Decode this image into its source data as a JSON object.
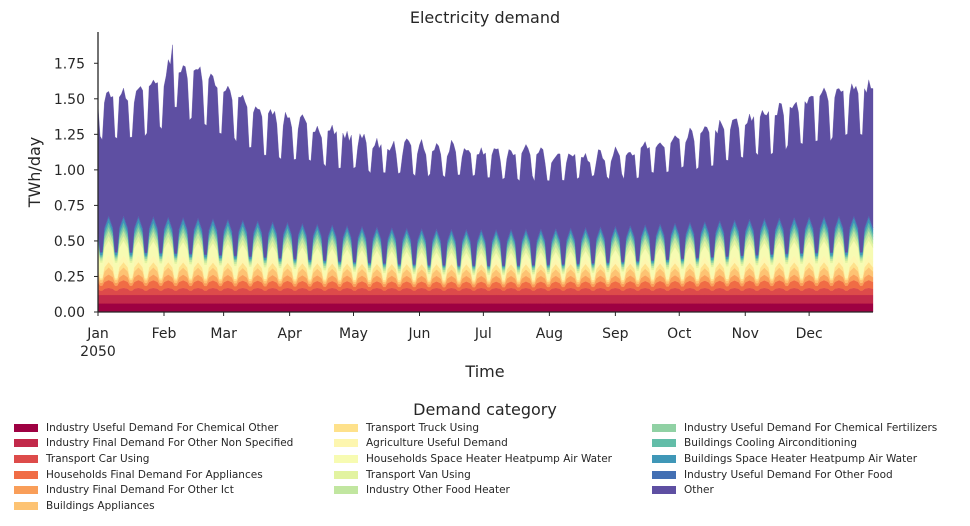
{
  "chart_data": {
    "type": "area",
    "stacked": true,
    "title": "Electricity demand",
    "xlabel": "Time",
    "ylabel": "TWh/day",
    "ylim": [
      0,
      1.97
    ],
    "yticks": [
      0.0,
      0.25,
      0.5,
      0.75,
      1.0,
      1.25,
      1.5,
      1.75
    ],
    "ytick_labels": [
      "0.00",
      "0.25",
      "0.50",
      "0.75",
      "1.00",
      "1.25",
      "1.50",
      "1.75"
    ],
    "xticks": [
      "Jan\n2050",
      "Feb",
      "Mar",
      "Apr",
      "May",
      "Jun",
      "Jul",
      "Aug",
      "Sep",
      "Oct",
      "Nov",
      "Dec"
    ],
    "xtick_labels": [
      "Jan",
      "Feb",
      "Mar",
      "Apr",
      "May",
      "Jun",
      "Jul",
      "Aug",
      "Sep",
      "Oct",
      "Nov",
      "Dec"
    ],
    "year_label": "2050",
    "grid": false,
    "legend_title": "Demand category",
    "legend_placement": "bottom",
    "x_start": "2050-01-01",
    "x_end": "2050-12-31",
    "daily_resolution": true,
    "total_envelope": {
      "months": [
        "Jan",
        "Feb",
        "Mar",
        "Apr",
        "May",
        "Jun",
        "Jul",
        "Aug",
        "Sep",
        "Oct",
        "Nov",
        "Dec"
      ],
      "weekday_peak": [
        1.55,
        1.75,
        1.45,
        1.32,
        1.2,
        1.17,
        1.15,
        1.12,
        1.18,
        1.3,
        1.45,
        1.6
      ],
      "weekend_trough": [
        1.2,
        1.35,
        1.1,
        1.02,
        0.95,
        0.93,
        0.92,
        0.92,
        0.94,
        1.02,
        1.12,
        1.22
      ],
      "max_value": 1.88,
      "max_date": "2050-02-05"
    },
    "series": [
      {
        "name": "Industry Useful Demand For Chemical Other",
        "color": "#9e0142",
        "mean": 0.06,
        "amp": 0.0,
        "season": 0.0
      },
      {
        "name": "Industry Final Demand For Other Non Specified",
        "color": "#c2294a",
        "mean": 0.06,
        "amp": 0.0,
        "season": 0.0
      },
      {
        "name": "Transport Car Using",
        "color": "#dd4b4a",
        "mean": 0.04,
        "amp": 0.01,
        "season": 0.0
      },
      {
        "name": "Households Final Demand For Appliances",
        "color": "#f06c45",
        "mean": 0.035,
        "amp": 0.01,
        "season": 0.01
      },
      {
        "name": "Industry Final Demand For Other Ict",
        "color": "#f99e59",
        "mean": 0.03,
        "amp": 0.01,
        "season": 0.0
      },
      {
        "name": "Buildings Appliances",
        "color": "#fdc373",
        "mean": 0.03,
        "amp": 0.015,
        "season": 0.005
      },
      {
        "name": "Transport Truck Using",
        "color": "#fee18b",
        "mean": 0.025,
        "amp": 0.012,
        "season": 0.0
      },
      {
        "name": "Agriculture Useful Demand",
        "color": "#fdf6af",
        "mean": 0.03,
        "amp": 0.01,
        "season": 0.01
      },
      {
        "name": "Households Space Heater Heatpump Air Water",
        "color": "#f7fbb2",
        "mean": 0.03,
        "amp": 0.01,
        "season": 0.06
      },
      {
        "name": "Transport Van Using",
        "color": "#e2f3a0",
        "mean": 0.025,
        "amp": 0.01,
        "season": 0.0
      },
      {
        "name": "Industry Other Food Heater",
        "color": "#c1e6a0",
        "mean": 0.025,
        "amp": 0.01,
        "season": 0.0
      },
      {
        "name": "Industry Useful Demand For Chemical Fertilizers",
        "color": "#90d1a4",
        "mean": 0.02,
        "amp": 0.008,
        "season": 0.0
      },
      {
        "name": "Buildings Cooling Airconditioning",
        "color": "#62bda8",
        "mean": 0.02,
        "amp": 0.01,
        "season": 0.0
      },
      {
        "name": "Buildings Space Heater Heatpump Air Water",
        "color": "#3f97b7",
        "mean": 0.015,
        "amp": 0.008,
        "season": 0.01
      },
      {
        "name": "Industry Useful Demand For Other Food",
        "color": "#436fb3",
        "mean": 0.01,
        "amp": 0.005,
        "season": 0.0
      },
      {
        "name": "Other",
        "color": "#5e4fa2",
        "mean": null,
        "amp": null,
        "season": null
      }
    ]
  }
}
